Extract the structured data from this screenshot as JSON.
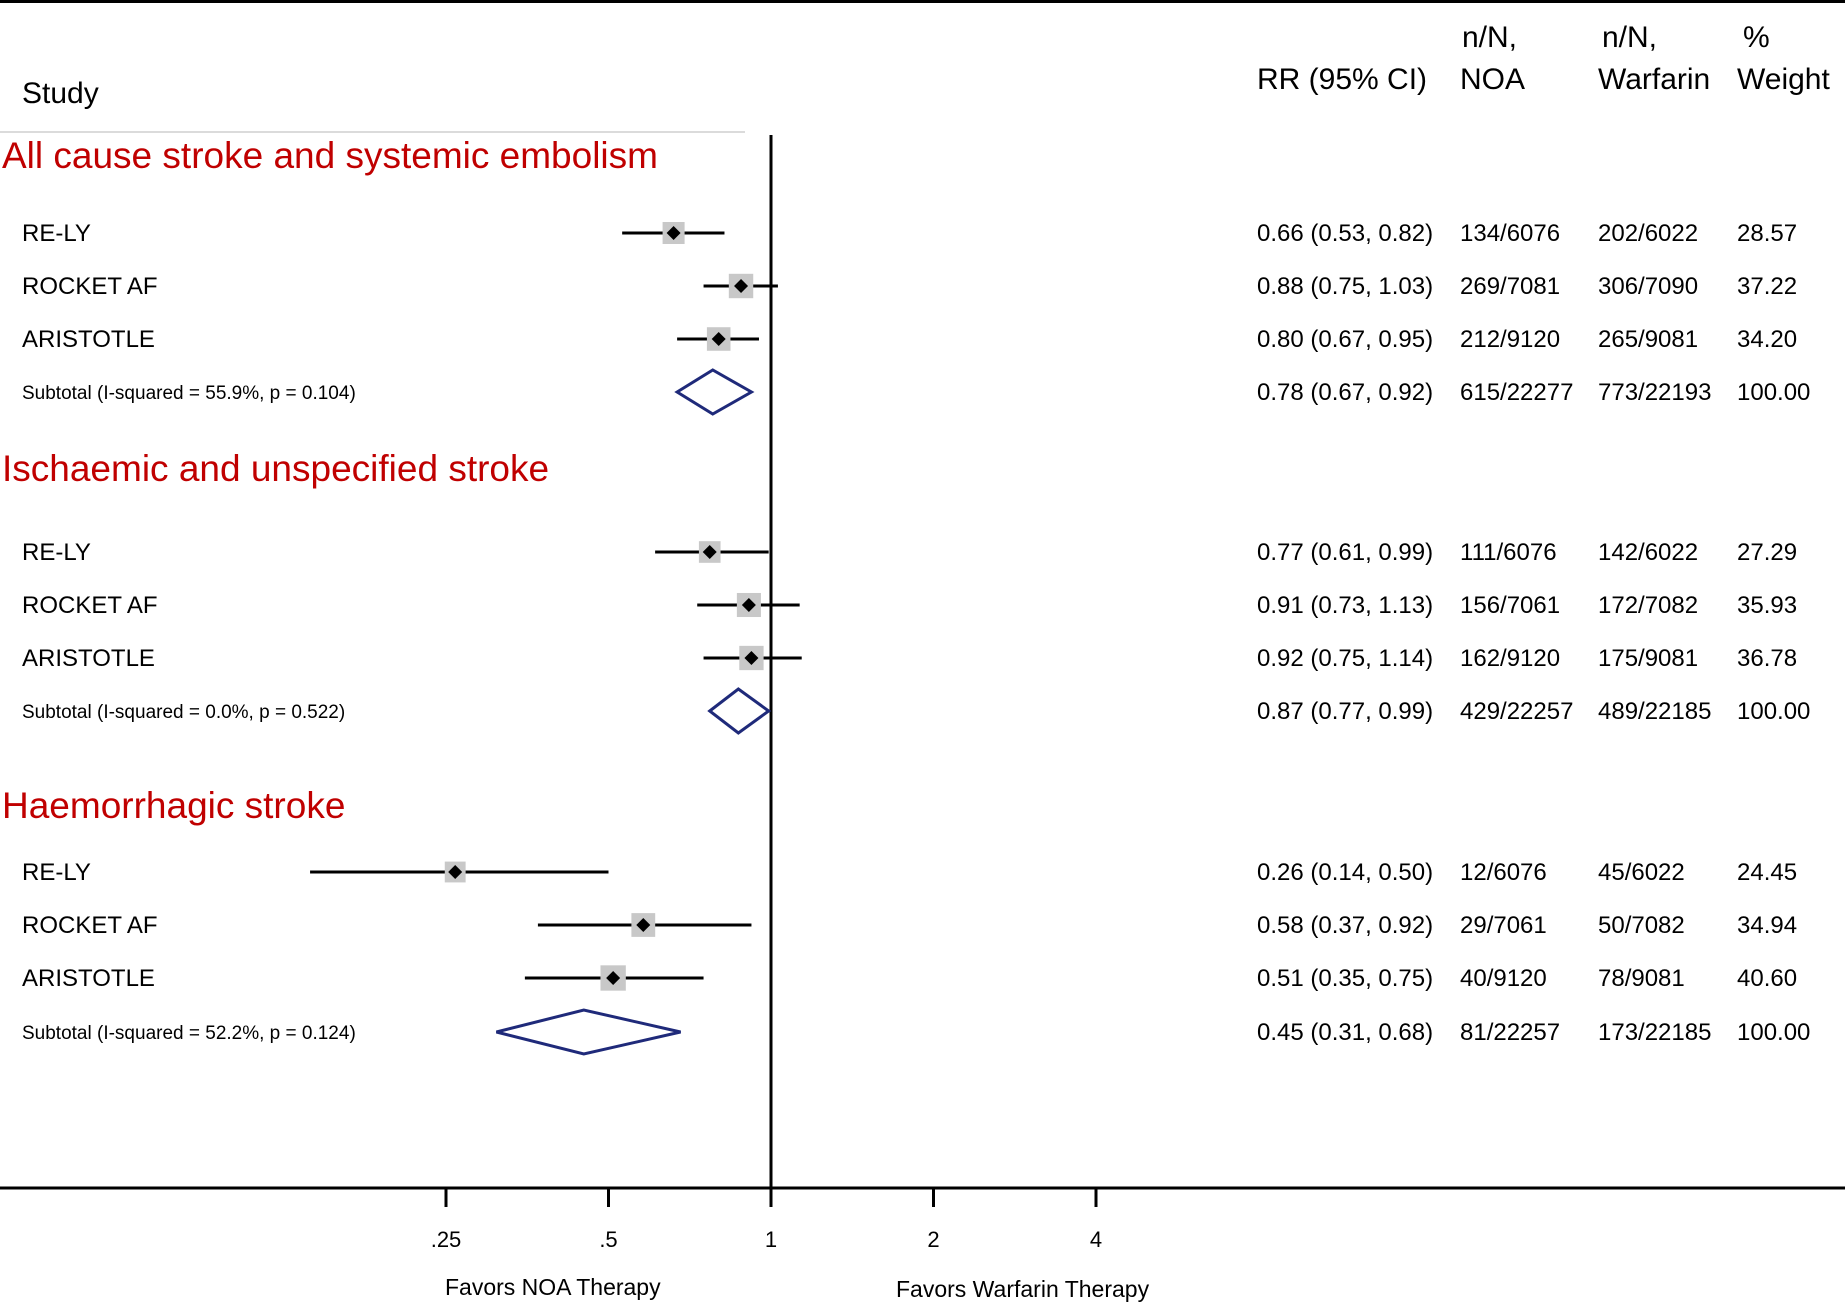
{
  "chart_data": {
    "type": "forest",
    "headers": {
      "study": "Study",
      "rr": "RR (95% CI)",
      "noa": [
        "n/N,",
        "NOA"
      ],
      "warfarin": [
        "n/N,",
        "Warfarin"
      ],
      "weight": [
        "%",
        "Weight"
      ]
    },
    "x_scale": "log",
    "xlim": [
      0.125,
      8
    ],
    "x_ticks": [
      {
        "value": 0.25,
        "label": ".25"
      },
      {
        "value": 0.5,
        "label": ".5"
      },
      {
        "value": 1,
        "label": "1"
      },
      {
        "value": 2,
        "label": "2"
      },
      {
        "value": 4,
        "label": "4"
      }
    ],
    "reference_line": 1,
    "favors_left": "Favors NOA Therapy",
    "favors_right": "Favors Warfarin Therapy",
    "colors": {
      "section": "#c00000",
      "diamond": "#1f2a7a",
      "box": "#c8c8c8",
      "marker": "#000000"
    },
    "sections": [
      {
        "title": "All cause stroke and systemic embolism",
        "studies": [
          {
            "name": "RE-LY",
            "rr": 0.66,
            "lo": 0.53,
            "hi": 0.82,
            "ci_text": "0.66 (0.53, 0.82)",
            "noa": "134/6076",
            "warfarin": "202/6022",
            "weight": "28.57",
            "weight_value": 28.57
          },
          {
            "name": "ROCKET AF",
            "rr": 0.88,
            "lo": 0.75,
            "hi": 1.03,
            "ci_text": "0.88 (0.75, 1.03)",
            "noa": "269/7081",
            "warfarin": "306/7090",
            "weight": "37.22",
            "weight_value": 37.22
          },
          {
            "name": "ARISTOTLE",
            "rr": 0.8,
            "lo": 0.67,
            "hi": 0.95,
            "ci_text": "0.80 (0.67, 0.95)",
            "noa": "212/9120",
            "warfarin": "265/9081",
            "weight": "34.20",
            "weight_value": 34.2
          }
        ],
        "subtotal": {
          "label": "Subtotal  (I-squared = 55.9%, p = 0.104)",
          "rr": 0.78,
          "lo": 0.67,
          "hi": 0.92,
          "ci_text": "0.78 (0.67, 0.92)",
          "noa": "615/22277",
          "warfarin": "773/22193",
          "weight": "100.00"
        }
      },
      {
        "title": "Ischaemic and unspecified stroke",
        "studies": [
          {
            "name": "RE-LY",
            "rr": 0.77,
            "lo": 0.61,
            "hi": 0.99,
            "ci_text": "0.77 (0.61, 0.99)",
            "noa": "111/6076",
            "warfarin": "142/6022",
            "weight": "27.29",
            "weight_value": 27.29
          },
          {
            "name": "ROCKET AF",
            "rr": 0.91,
            "lo": 0.73,
            "hi": 1.13,
            "ci_text": "0.91 (0.73, 1.13)",
            "noa": "156/7061",
            "warfarin": "172/7082",
            "weight": "35.93",
            "weight_value": 35.93
          },
          {
            "name": "ARISTOTLE",
            "rr": 0.92,
            "lo": 0.75,
            "hi": 1.14,
            "ci_text": "0.92 (0.75, 1.14)",
            "noa": "162/9120",
            "warfarin": "175/9081",
            "weight": "36.78",
            "weight_value": 36.78
          }
        ],
        "subtotal": {
          "label": "Subtotal  (I-squared = 0.0%, p = 0.522)",
          "rr": 0.87,
          "lo": 0.77,
          "hi": 0.99,
          "ci_text": "0.87 (0.77, 0.99)",
          "noa": "429/22257",
          "warfarin": "489/22185",
          "weight": "100.00"
        }
      },
      {
        "title": "Haemorrhagic stroke",
        "studies": [
          {
            "name": "RE-LY",
            "rr": 0.26,
            "lo": 0.14,
            "hi": 0.5,
            "ci_text": "0.26 (0.14, 0.50)",
            "noa": "12/6076",
            "warfarin": "45/6022",
            "weight": "24.45",
            "weight_value": 24.45
          },
          {
            "name": "ROCKET AF",
            "rr": 0.58,
            "lo": 0.37,
            "hi": 0.92,
            "ci_text": "0.58 (0.37, 0.92)",
            "noa": "29/7061",
            "warfarin": "50/7082",
            "weight": "34.94",
            "weight_value": 34.94
          },
          {
            "name": "ARISTOTLE",
            "rr": 0.51,
            "lo": 0.35,
            "hi": 0.75,
            "ci_text": "0.51 (0.35, 0.75)",
            "noa": "40/9120",
            "warfarin": "78/9081",
            "weight": "40.60",
            "weight_value": 40.6
          }
        ],
        "subtotal": {
          "label": "Subtotal  (I-squared = 52.2%, p = 0.124)",
          "rr": 0.45,
          "lo": 0.31,
          "hi": 0.68,
          "ci_text": "0.45 (0.31, 0.68)",
          "noa": "81/22257",
          "warfarin": "173/22185",
          "weight": "100.00"
        }
      }
    ]
  }
}
